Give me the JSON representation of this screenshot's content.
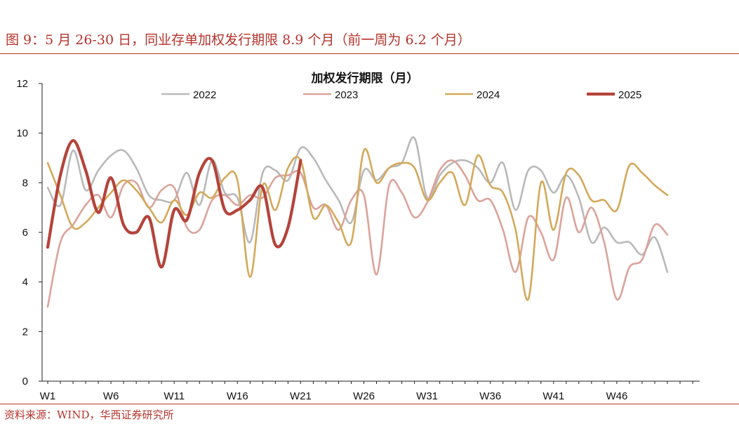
{
  "figure": {
    "title": "图 9：5 月 26-30 日，同业存单加权发行期限 8.9 个月（前一周为 6.2 个月）",
    "source": "资料来源：WIND，华西证券研究所"
  },
  "colors": {
    "brand_red": "#b5322a",
    "s2022": "#b9b9b9",
    "s2023": "#dba39a",
    "s2024": "#d3a95a",
    "s2025": "#b4433a"
  },
  "chart_data": {
    "type": "line",
    "title": "加权发行期限（月）",
    "legend_position": "top",
    "grid": false,
    "ylim": [
      0,
      12
    ],
    "yticks": [
      0,
      2,
      4,
      6,
      8,
      10,
      12
    ],
    "xlim": [
      1,
      52
    ],
    "xticks": [
      {
        "week": 1,
        "label": "W1"
      },
      {
        "week": 6,
        "label": "W6"
      },
      {
        "week": 11,
        "label": "W11"
      },
      {
        "week": 16,
        "label": "W16"
      },
      {
        "week": 21,
        "label": "W21"
      },
      {
        "week": 26,
        "label": "W26"
      },
      {
        "week": 31,
        "label": "W31"
      },
      {
        "week": 36,
        "label": "W36"
      },
      {
        "week": 41,
        "label": "W41"
      },
      {
        "week": 46,
        "label": "W46"
      }
    ],
    "series": [
      {
        "name": "2022",
        "color": "#b9b9b9",
        "width": 2.6,
        "values": [
          7.8,
          7.1,
          9.3,
          7.7,
          8.5,
          9.1,
          9.3,
          8.6,
          7.5,
          7.3,
          7.3,
          8.4,
          7.1,
          8.9,
          7.6,
          7.4,
          5.6,
          8.4,
          8.5,
          8.1,
          9.4,
          9.0,
          8.1,
          7.3,
          6.4,
          8.5,
          8.1,
          8.6,
          8.8,
          9.8,
          7.4,
          8.3,
          8.8,
          8.9,
          8.6,
          8.0,
          8.8,
          6.9,
          8.5,
          8.5,
          7.6,
          8.3,
          7.4,
          5.6,
          6.2,
          5.6,
          5.6,
          5.1,
          5.8,
          4.4
        ]
      },
      {
        "name": "2023",
        "color": "#dba39a",
        "width": 2.6,
        "values": [
          3.0,
          5.6,
          6.3,
          7.1,
          7.5,
          6.6,
          7.9,
          8.0,
          7.0,
          7.7,
          7.8,
          6.2,
          6.1,
          7.3,
          7.5,
          7.1,
          7.5,
          7.4,
          8.2,
          8.3,
          8.4,
          7.0,
          7.1,
          6.1,
          7.3,
          7.5,
          4.3,
          7.9,
          7.6,
          6.6,
          7.2,
          8.5,
          8.9,
          8.3,
          7.3,
          7.3,
          6.1,
          4.4,
          6.6,
          6.0,
          4.9,
          7.4,
          6.0,
          7.0,
          5.6,
          3.3,
          4.6,
          4.9,
          6.3,
          5.9
        ]
      },
      {
        "name": "2024",
        "color": "#d3a95a",
        "width": 2.6,
        "values": [
          8.8,
          7.5,
          6.2,
          6.4,
          7.0,
          7.6,
          8.1,
          7.7,
          7.0,
          6.4,
          7.3,
          6.7,
          7.6,
          7.4,
          8.2,
          8.1,
          4.2,
          7.9,
          6.9,
          8.6,
          8.9,
          6.6,
          7.1,
          6.4,
          5.6,
          9.3,
          8.0,
          8.6,
          8.8,
          8.6,
          7.3,
          8.0,
          8.4,
          7.1,
          9.1,
          7.9,
          7.6,
          6.1,
          3.3,
          8.0,
          6.1,
          8.4,
          8.3,
          7.3,
          7.3,
          6.9,
          8.7,
          8.4,
          7.9,
          7.5
        ]
      },
      {
        "name": "2025",
        "color": "#b4433a",
        "width": 4.2,
        "values": [
          5.4,
          8.3,
          9.7,
          8.5,
          6.8,
          8.2,
          6.3,
          6.0,
          6.6,
          4.6,
          6.9,
          6.5,
          8.4,
          8.9,
          6.9,
          6.9,
          7.3,
          7.8,
          5.5,
          6.2,
          8.9
        ]
      }
    ]
  }
}
